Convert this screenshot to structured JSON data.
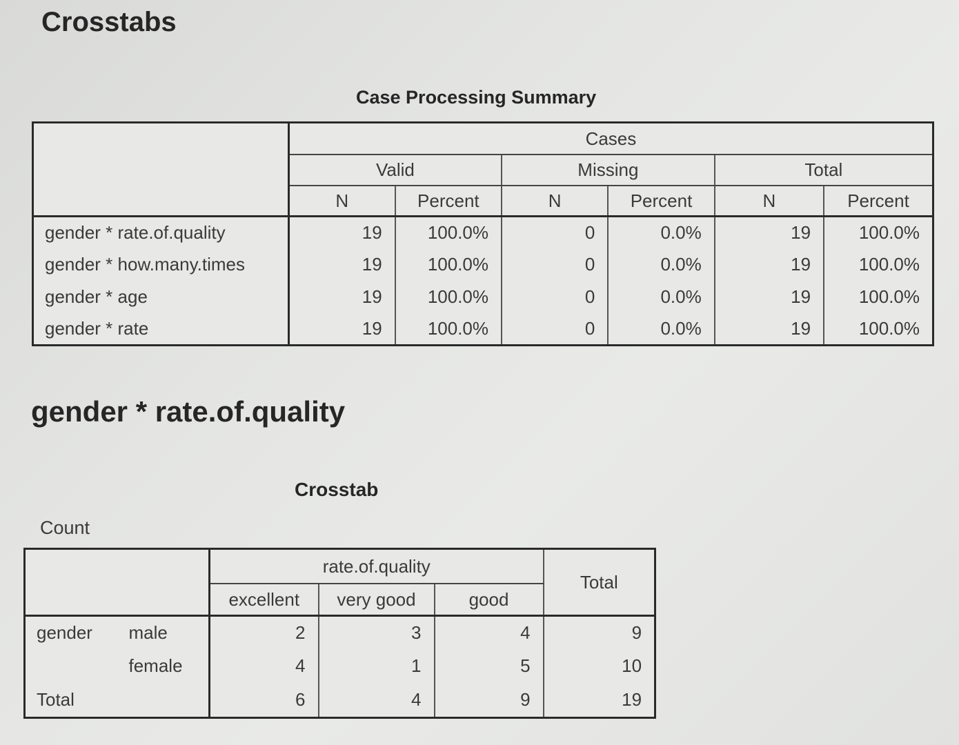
{
  "page_title": "Crosstabs",
  "case_processing_summary": {
    "title": "Case Processing Summary",
    "header_cases": "Cases",
    "groups": [
      "Valid",
      "Missing",
      "Total"
    ],
    "subheaders": [
      "N",
      "Percent",
      "N",
      "Percent",
      "N",
      "Percent"
    ],
    "rows": [
      {
        "label": "gender * rate.of.quality",
        "values": [
          "19",
          "100.0%",
          "0",
          "0.0%",
          "19",
          "100.0%"
        ]
      },
      {
        "label": "gender * how.many.times",
        "values": [
          "19",
          "100.0%",
          "0",
          "0.0%",
          "19",
          "100.0%"
        ]
      },
      {
        "label": "gender * age",
        "values": [
          "19",
          "100.0%",
          "0",
          "0.0%",
          "19",
          "100.0%"
        ]
      },
      {
        "label": "gender * rate",
        "values": [
          "19",
          "100.0%",
          "0",
          "0.0%",
          "19",
          "100.0%"
        ]
      }
    ]
  },
  "section_title": "gender * rate.of.quality",
  "crosstab": {
    "title": "Crosstab",
    "statistic": "Count",
    "column_variable": "rate.of.quality",
    "columns": [
      "excellent",
      "very good",
      "good"
    ],
    "total_label": "Total",
    "row_variable": "gender",
    "rows": [
      {
        "category": "male",
        "values": [
          "2",
          "3",
          "4"
        ],
        "total": "9"
      },
      {
        "category": "female",
        "values": [
          "4",
          "1",
          "5"
        ],
        "total": "10"
      }
    ],
    "total_row": {
      "label": "Total",
      "values": [
        "6",
        "4",
        "9"
      ],
      "total": "19"
    }
  }
}
